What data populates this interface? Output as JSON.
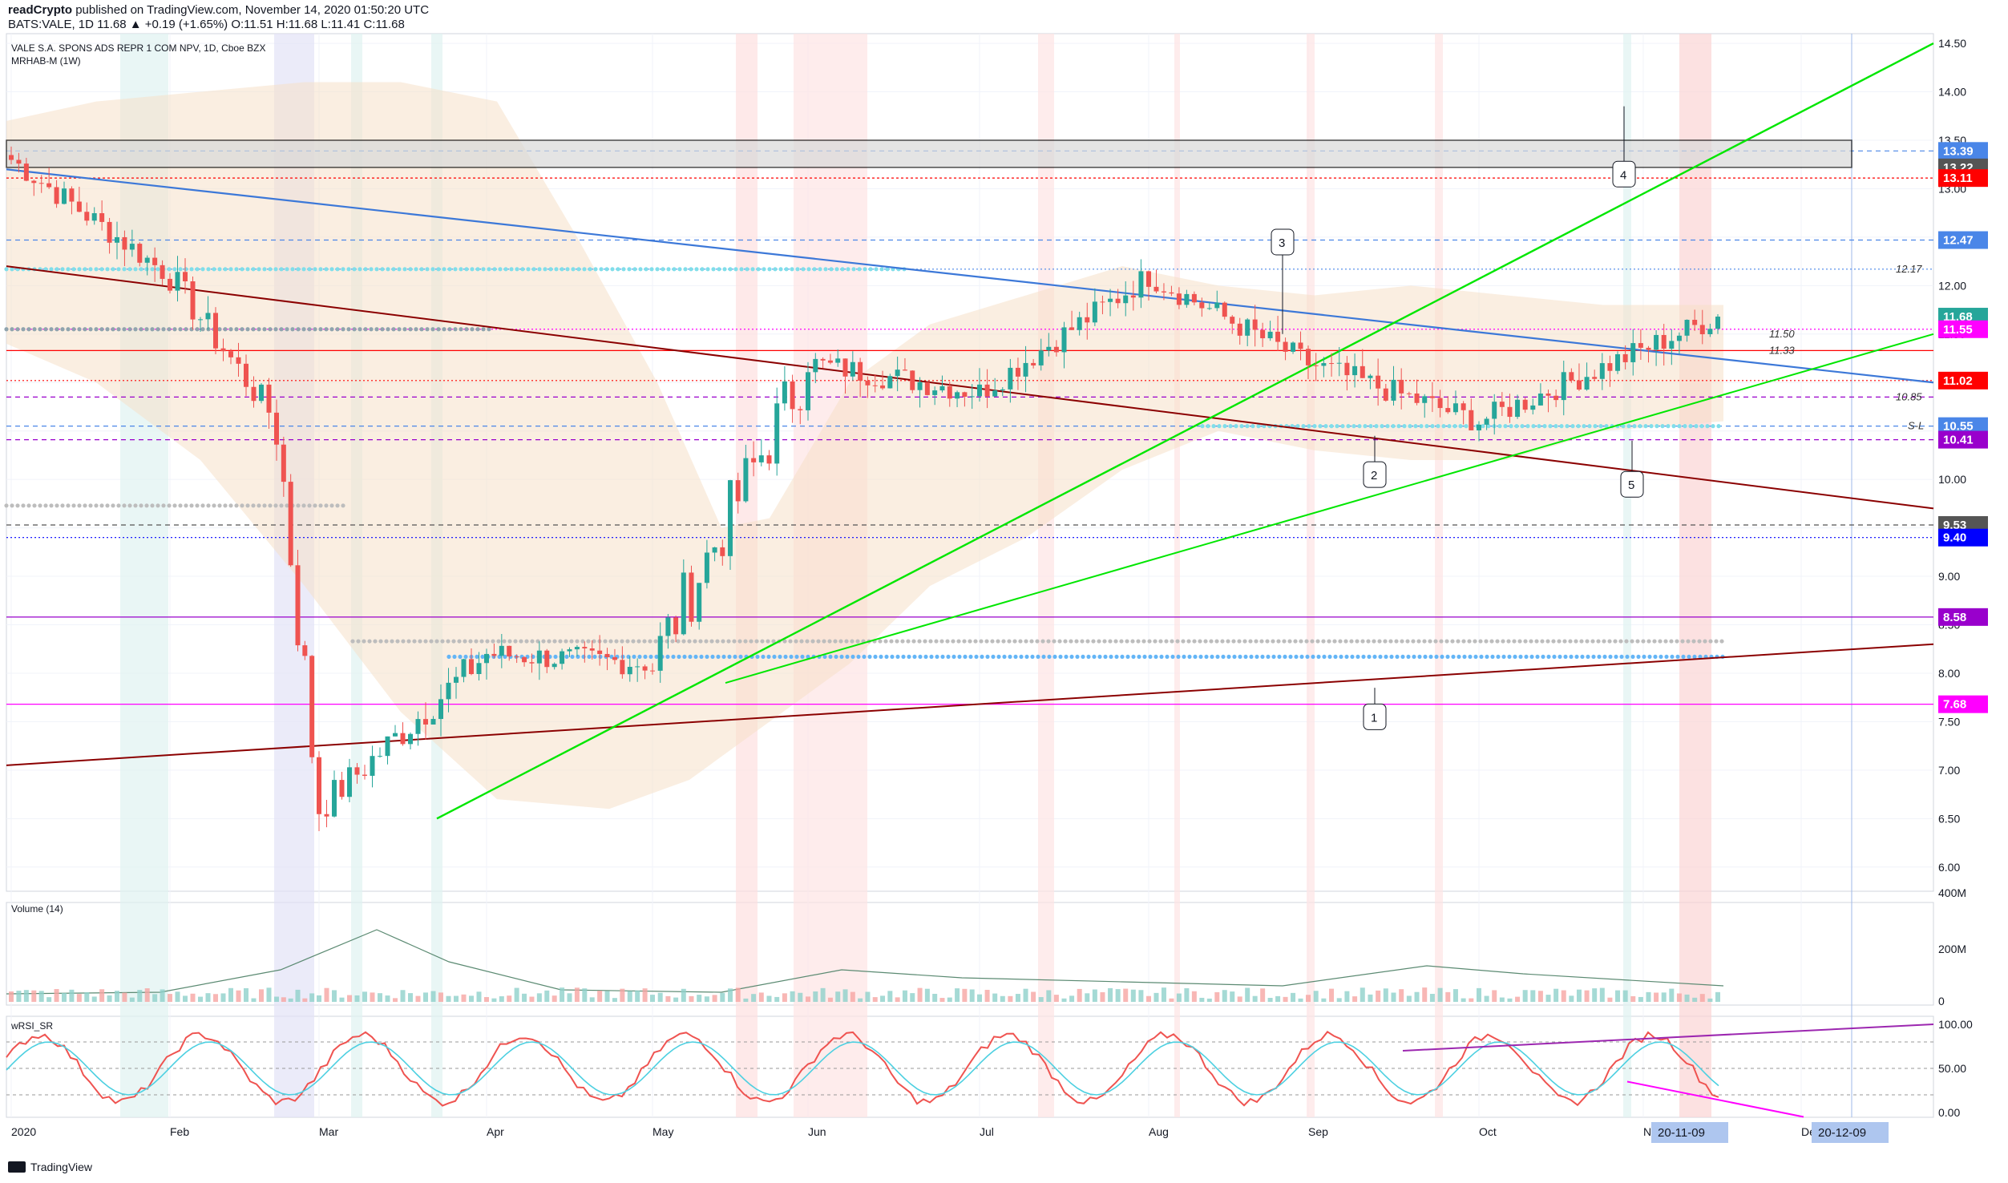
{
  "header": {
    "author": "readCrypto",
    "published_text": "published on TradingView.com, November 14, 2020 01:50:20 UTC",
    "ticker_line": "BATS:VALE, 1D 11.68 ▲ +0.19 (+1.65%) O:11.51 H:11.68 L:11.41 C:11.68"
  },
  "chart_title": "VALE S.A. SPONS ADS REPR 1 COM NPV, 1D, Cboe BZX",
  "indicator_label": "MRHAB-M (1W)",
  "volume_label": "Volume (14)",
  "rsi_label": "wRSI_SR",
  "footer": {
    "brand": "TradingView"
  },
  "colors": {
    "up": "#26a69a",
    "down": "#ef5350",
    "green_line": "#00e600",
    "blue_line": "#3c78d8",
    "darkred_line": "#8b0000",
    "purple": "#9c27b0",
    "magenta": "#ff00ff",
    "cloud": "#f5e0c8"
  },
  "chart_data": [
    {
      "type": "candlestick",
      "title": "VALE S.A. SPONS ADS REPR 1 COM NPV, 1D, Cboe BZX",
      "x_ticks": [
        "2020",
        "Feb",
        "Mar",
        "Apr",
        "May",
        "Jun",
        "Jul",
        "Aug",
        "Sep",
        "Oct",
        "No",
        "Dec"
      ],
      "y_ticks": [
        6.0,
        6.5,
        7.0,
        7.5,
        8.0,
        8.5,
        9.0,
        9.5,
        10.0,
        10.5,
        11.0,
        11.5,
        12.0,
        12.5,
        13.0,
        13.5,
        14.0,
        14.5
      ],
      "y_tick_labels": [
        "6.00",
        "6.50",
        "7.00",
        "7.50",
        "8.00",
        "8.50",
        "9.00",
        "9.50",
        "10.00",
        "10.50",
        "11.00",
        "11.50",
        "12.00",
        "12.50",
        "13.00",
        "13.50",
        "14.00",
        "14.50"
      ],
      "ylim": [
        5.75,
        14.6
      ],
      "last": {
        "open": 11.51,
        "high": 11.68,
        "low": 11.41,
        "close": 11.68,
        "change": "+0.19 (+1.65%)"
      },
      "close_path": [
        [
          "2020",
          13.3
        ],
        [
          "Feb",
          12.1
        ],
        [
          "Mar",
          10.6
        ],
        [
          "Mar",
          6.6
        ],
        [
          "Apr",
          8.2
        ],
        [
          "May",
          8.1
        ],
        [
          "Jun",
          11.2
        ],
        [
          "Jul",
          10.9
        ],
        [
          "Aug",
          12.1
        ],
        [
          "Sep",
          11.2
        ],
        [
          "Oct",
          10.6
        ],
        [
          "No",
          11.68
        ]
      ],
      "price_labels": [
        {
          "text": "13.39",
          "color": "#4a86e8"
        },
        {
          "text": "13.22",
          "color": "#555555"
        },
        {
          "text": "13.11",
          "color": "#ff0000"
        },
        {
          "text": "12.47",
          "color": "#4a86e8"
        },
        {
          "text": "11.68",
          "color": "#26a69a"
        },
        {
          "text": "11.55",
          "color": "#ff00ff"
        },
        {
          "text": "11.02",
          "color": "#ff0000"
        },
        {
          "text": "10.55",
          "color": "#4a86e8"
        },
        {
          "text": "10.41",
          "color": "#9900cc"
        },
        {
          "text": "9.53",
          "color": "#555555"
        },
        {
          "text": "9.40",
          "color": "#0000ff"
        },
        {
          "text": "8.58",
          "color": "#9900cc"
        },
        {
          "text": "7.68",
          "color": "#ff00ff"
        }
      ],
      "annotations": [
        "12.17",
        "11.50",
        "11.33",
        "10.85",
        "S-L"
      ],
      "callouts": [
        "1",
        "2",
        "3",
        "4",
        "5"
      ]
    },
    {
      "type": "bar",
      "title": "Volume (14)",
      "y_ticks": [
        "400M",
        "200M",
        "0"
      ]
    },
    {
      "type": "line",
      "title": "wRSI_SR",
      "y_ticks": [
        "100.00",
        "50.00",
        "0.00"
      ],
      "date_labels": [
        "20-11-09",
        "20-12-09"
      ]
    }
  ]
}
